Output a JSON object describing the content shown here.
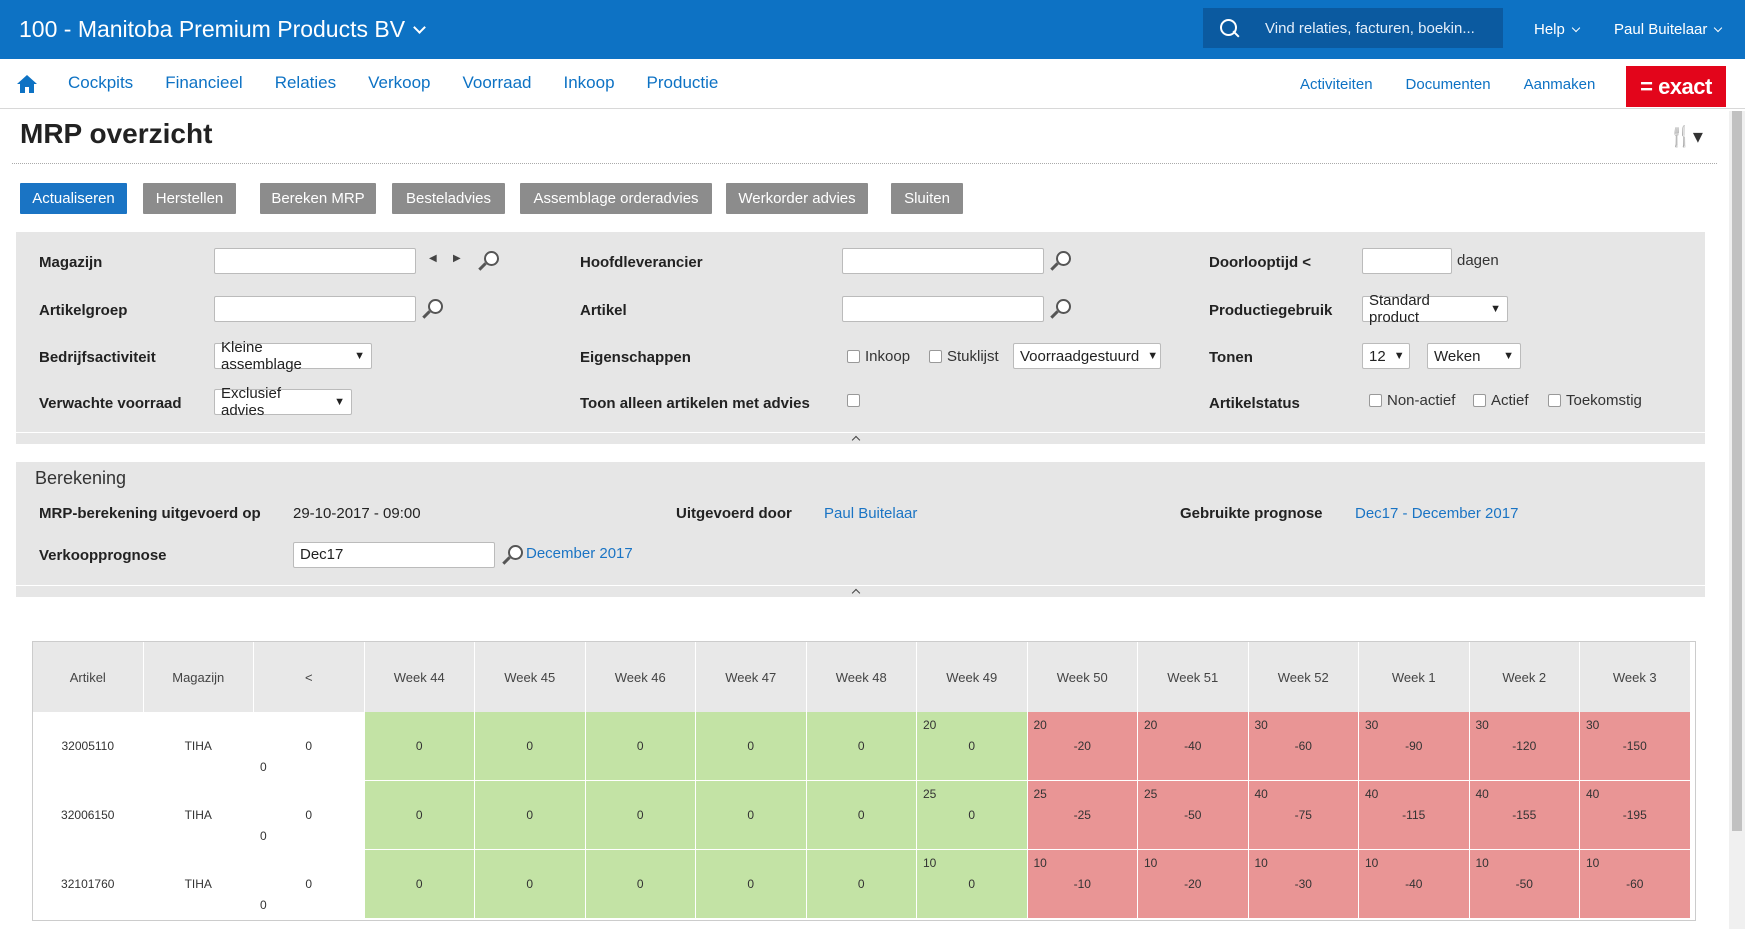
{
  "topbar": {
    "company": "100 - Manitoba Premium Products BV",
    "search_placeholder": "Vind relaties, facturen, boekin...",
    "help": "Help",
    "user": "Paul Buitelaar"
  },
  "nav": {
    "items": [
      "Cockpits",
      "Financieel",
      "Relaties",
      "Verkoop",
      "Voorraad",
      "Inkoop",
      "Productie"
    ],
    "right": [
      "Activiteiten",
      "Documenten",
      "Aanmaken"
    ],
    "logo": "= exact"
  },
  "page": {
    "title": "MRP overzicht"
  },
  "buttons": [
    "Actualiseren",
    "Herstellen",
    "Bereken MRP",
    "Besteladvies",
    "Assemblage orderadvies",
    "Werkorder advies",
    "Sluiten"
  ],
  "filters": {
    "magazijn": "Magazijn",
    "artikelgroep": "Artikelgroep",
    "bedrijfsactiviteit": "Bedrijfsactiviteit",
    "bedrijfsactiviteit_value": "Kleine assemblage",
    "verwachte_voorraad": "Verwachte voorraad",
    "verwachte_voorraad_value": "Exclusief advies",
    "hoofdleverancier": "Hoofdleverancier",
    "artikel": "Artikel",
    "eigenschappen": "Eigenschappen",
    "cb_inkoop": "Inkoop",
    "cb_stuklijst": "Stuklijst",
    "eigenschappen_value": "Voorraadgestuurd",
    "toon_alleen": "Toon alleen artikelen met advies",
    "doorlooptijd": "Doorlooptijd <",
    "dagen": "dagen",
    "productiegebruik": "Productiegebruik",
    "productiegebruik_value": "Standard product",
    "tonen": "Tonen",
    "tonen_count": "12",
    "tonen_unit": "Weken",
    "artikelstatus": "Artikelstatus",
    "cb_nonactief": "Non-actief",
    "cb_actief": "Actief",
    "cb_toekomstig": "Toekomstig"
  },
  "berekening": {
    "title": "Berekening",
    "uitgevoerd_op_label": "MRP-berekening uitgevoerd op",
    "uitgevoerd_op_value": "29-10-2017 - 09:00",
    "uitgevoerd_door_label": "Uitgevoerd door",
    "uitgevoerd_door_value": "Paul Buitelaar",
    "prognose_label": "Gebruikte prognose",
    "prognose_value": "Dec17 - December 2017",
    "verkoopprognose_label": "Verkoopprognose",
    "verkoopprognose_value": "Dec17",
    "verkoopprognose_link": "December 2017"
  },
  "grid": {
    "headers": [
      "Artikel",
      "Magazijn",
      "<",
      "Week 44",
      "Week 45",
      "Week 46",
      "Week 47",
      "Week 48",
      "Week 49",
      "Week 50",
      "Week 51",
      "Week 52",
      "Week 1",
      "Week 2",
      "Week 3"
    ],
    "rows": [
      {
        "artikel": "32005110",
        "magazijn": "TIHA",
        "prev": "0",
        "prev_bottom": "0",
        "weeks": [
          {
            "top": "",
            "value": "0",
            "status": "green"
          },
          {
            "top": "",
            "value": "0",
            "status": "green"
          },
          {
            "top": "",
            "value": "0",
            "status": "green"
          },
          {
            "top": "",
            "value": "0",
            "status": "green"
          },
          {
            "top": "",
            "value": "0",
            "status": "green"
          },
          {
            "top": "20",
            "value": "0",
            "status": "green"
          },
          {
            "top": "20",
            "value": "-20",
            "status": "red"
          },
          {
            "top": "20",
            "value": "-40",
            "status": "red"
          },
          {
            "top": "30",
            "value": "-60",
            "status": "red"
          },
          {
            "top": "30",
            "value": "-90",
            "status": "red"
          },
          {
            "top": "30",
            "value": "-120",
            "status": "red"
          },
          {
            "top": "30",
            "value": "-150",
            "status": "red"
          }
        ]
      },
      {
        "artikel": "32006150",
        "magazijn": "TIHA",
        "prev": "0",
        "prev_bottom": "0",
        "weeks": [
          {
            "top": "",
            "value": "0",
            "status": "green"
          },
          {
            "top": "",
            "value": "0",
            "status": "green"
          },
          {
            "top": "",
            "value": "0",
            "status": "green"
          },
          {
            "top": "",
            "value": "0",
            "status": "green"
          },
          {
            "top": "",
            "value": "0",
            "status": "green"
          },
          {
            "top": "25",
            "value": "0",
            "status": "green"
          },
          {
            "top": "25",
            "value": "-25",
            "status": "red"
          },
          {
            "top": "25",
            "value": "-50",
            "status": "red"
          },
          {
            "top": "40",
            "value": "-75",
            "status": "red"
          },
          {
            "top": "40",
            "value": "-115",
            "status": "red"
          },
          {
            "top": "40",
            "value": "-155",
            "status": "red"
          },
          {
            "top": "40",
            "value": "-195",
            "status": "red"
          }
        ]
      },
      {
        "artikel": "32101760",
        "magazijn": "TIHA",
        "prev": "0",
        "prev_bottom": "0",
        "weeks": [
          {
            "top": "",
            "value": "0",
            "status": "green"
          },
          {
            "top": "",
            "value": "0",
            "status": "green"
          },
          {
            "top": "",
            "value": "0",
            "status": "green"
          },
          {
            "top": "",
            "value": "0",
            "status": "green"
          },
          {
            "top": "",
            "value": "0",
            "status": "green"
          },
          {
            "top": "10",
            "value": "0",
            "status": "green"
          },
          {
            "top": "10",
            "value": "-10",
            "status": "red"
          },
          {
            "top": "10",
            "value": "-20",
            "status": "red"
          },
          {
            "top": "10",
            "value": "-30",
            "status": "red"
          },
          {
            "top": "10",
            "value": "-40",
            "status": "red"
          },
          {
            "top": "10",
            "value": "-50",
            "status": "red"
          },
          {
            "top": "10",
            "value": "-60",
            "status": "red"
          }
        ]
      }
    ]
  }
}
